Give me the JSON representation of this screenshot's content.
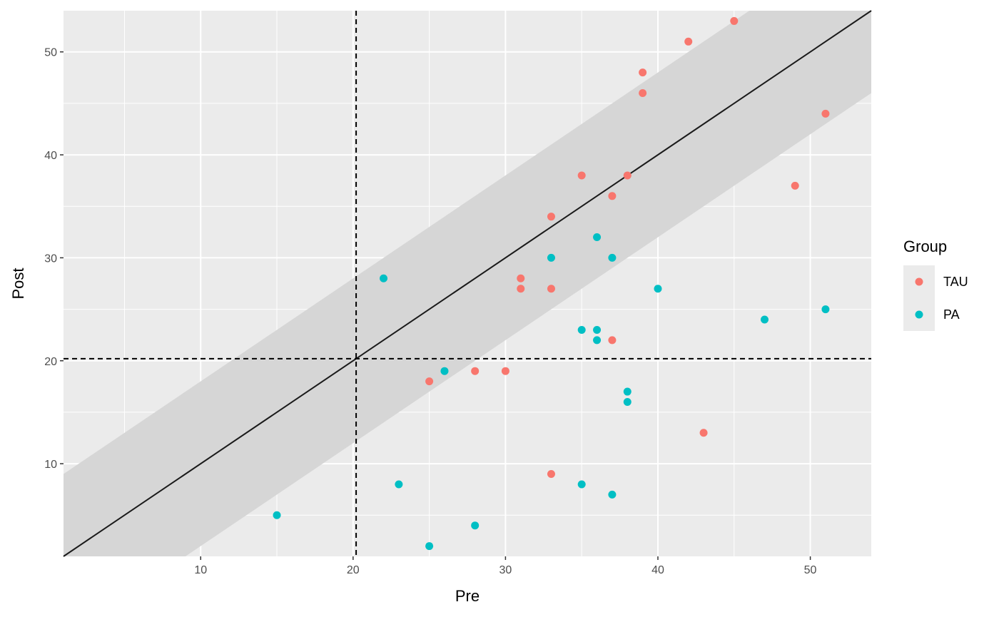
{
  "chart_data": {
    "type": "scatter",
    "xlabel": "Pre",
    "ylabel": "Post",
    "xlim": [
      1,
      54
    ],
    "ylim": [
      1,
      54
    ],
    "x_ticks": [
      10,
      20,
      30,
      40,
      50
    ],
    "y_ticks": [
      10,
      20,
      30,
      40,
      50
    ],
    "grid": true,
    "cutoff": {
      "x": 20.2,
      "y": 20.2,
      "style": "dashed"
    },
    "identity_line": {
      "slope": 1,
      "intercept": 0
    },
    "band": {
      "half_width": 8
    },
    "legend": {
      "title": "Group",
      "placement": "right"
    },
    "series": [
      {
        "name": "TAU",
        "color": "#F8766D",
        "points": [
          [
            45,
            53
          ],
          [
            42,
            51
          ],
          [
            39,
            48
          ],
          [
            39,
            46
          ],
          [
            51,
            44
          ],
          [
            35,
            38
          ],
          [
            38,
            38
          ],
          [
            49,
            37
          ],
          [
            37,
            36
          ],
          [
            33,
            34
          ],
          [
            31,
            28
          ],
          [
            31,
            27
          ],
          [
            33,
            27
          ],
          [
            37,
            22
          ],
          [
            25,
            18
          ],
          [
            28,
            19
          ],
          [
            30,
            19
          ],
          [
            43,
            13
          ],
          [
            33,
            9
          ]
        ]
      },
      {
        "name": "PA",
        "color": "#00BFC4",
        "points": [
          [
            36,
            32
          ],
          [
            33,
            30
          ],
          [
            37,
            30
          ],
          [
            22,
            28
          ],
          [
            40,
            27
          ],
          [
            51,
            25
          ],
          [
            47,
            24
          ],
          [
            35,
            23
          ],
          [
            36,
            23
          ],
          [
            36,
            22
          ],
          [
            26,
            19
          ],
          [
            38,
            17
          ],
          [
            38,
            16
          ],
          [
            23,
            8
          ],
          [
            35,
            8
          ],
          [
            37,
            7
          ],
          [
            15,
            5
          ],
          [
            28,
            4
          ],
          [
            25,
            2
          ]
        ]
      }
    ]
  }
}
